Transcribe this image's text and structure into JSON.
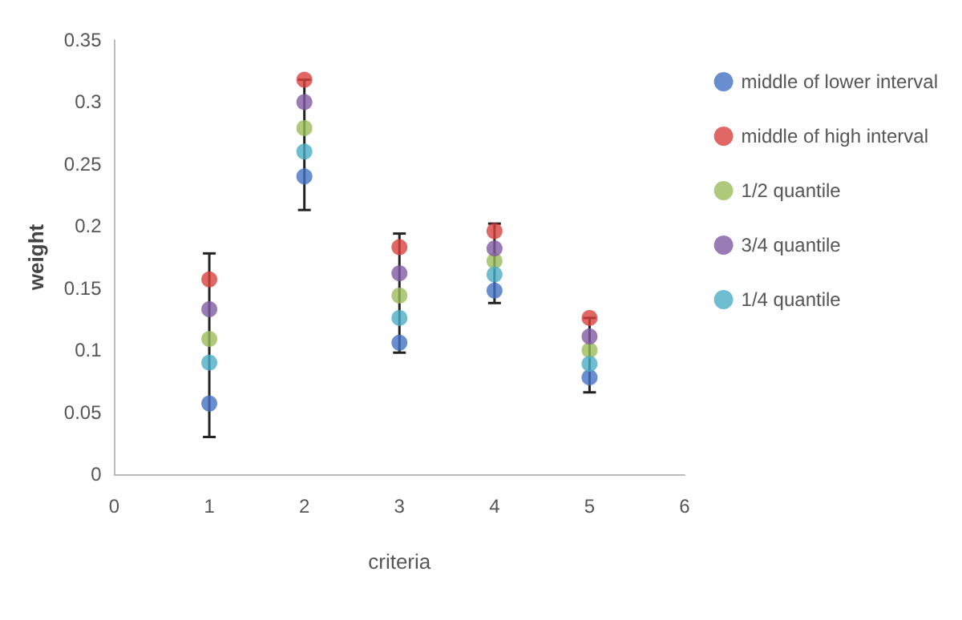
{
  "chart_data": {
    "type": "scatter",
    "xlabel": "criteria",
    "ylabel": "weight",
    "x": [
      1,
      2,
      3,
      4,
      5
    ],
    "series": [
      {
        "name": "middle of lower interval",
        "color": "#4472c4",
        "values": [
          0.057,
          0.24,
          0.106,
          0.148,
          0.078
        ],
        "errors": [
          [
            0.03,
            0.178
          ],
          [
            0.213,
            0.318
          ],
          [
            0.098,
            0.194
          ],
          [
            0.138,
            0.202
          ],
          [
            0.066,
            0.126
          ]
        ]
      },
      {
        "name": "middle of high interval",
        "color": "#d9413e",
        "values": [
          0.157,
          0.318,
          0.183,
          0.196,
          0.126
        ]
      },
      {
        "name": "1/2 quantile",
        "color": "#9bbb59",
        "values": [
          0.109,
          0.279,
          0.144,
          0.172,
          0.1
        ]
      },
      {
        "name": "3/4 quantile",
        "color": "#7f5aa2",
        "values": [
          0.133,
          0.3,
          0.162,
          0.182,
          0.111
        ]
      },
      {
        "name": "1/4 quantile",
        "color": "#4bacc6",
        "values": [
          0.09,
          0.26,
          0.126,
          0.161,
          0.089
        ]
      }
    ],
    "xlim": [
      0,
      6
    ],
    "xticks": [
      0,
      1,
      2,
      3,
      4,
      5,
      6
    ],
    "ylim": [
      0,
      0.35
    ],
    "yticks": [
      0,
      0.05,
      0.1,
      0.15,
      0.2,
      0.25,
      0.3,
      0.35
    ],
    "grid": false,
    "legend": "right",
    "marker": "circle"
  }
}
